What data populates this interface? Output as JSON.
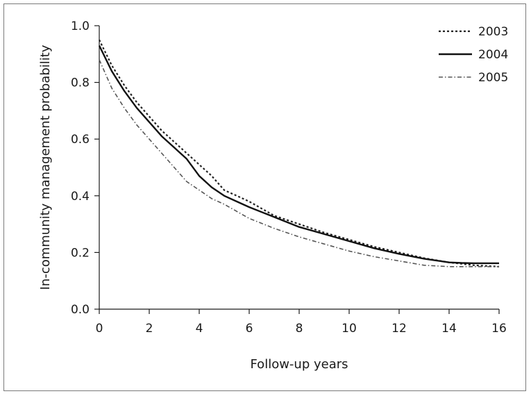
{
  "chart_data": {
    "type": "line",
    "title": "",
    "xlabel": "Follow-up years",
    "ylabel": "In-community management probability",
    "xlim": [
      0,
      16
    ],
    "ylim": [
      0,
      1
    ],
    "x_ticks": [
      "0",
      "2",
      "4",
      "6",
      "8",
      "10",
      "12",
      "14",
      "16"
    ],
    "y_ticks": [
      "0.0",
      "0.2",
      "0.4",
      "0.6",
      "0.8",
      "1.0"
    ],
    "grid": false,
    "legend_position": "top-right",
    "series": [
      {
        "name": "2003",
        "style": "dotted",
        "color": "#222222",
        "x": [
          0,
          0.5,
          1,
          1.5,
          2,
          2.5,
          3,
          3.5,
          4,
          4.5,
          5,
          5.5,
          6,
          7,
          8,
          9,
          10,
          11,
          12,
          13,
          14,
          14.5,
          15,
          16
        ],
        "y": [
          0.95,
          0.86,
          0.79,
          0.73,
          0.68,
          0.63,
          0.59,
          0.55,
          0.51,
          0.47,
          0.42,
          0.4,
          0.38,
          0.33,
          0.3,
          0.27,
          0.245,
          0.22,
          0.2,
          0.18,
          0.165,
          0.16,
          0.155,
          0.15
        ]
      },
      {
        "name": "2004",
        "style": "solid",
        "color": "#111111",
        "x": [
          0,
          0.5,
          1,
          1.5,
          2,
          2.5,
          3,
          3.5,
          4,
          4.5,
          5,
          5.5,
          6,
          7,
          8,
          9,
          10,
          11,
          12,
          13,
          14,
          14.5,
          15,
          16
        ],
        "y": [
          0.93,
          0.84,
          0.77,
          0.71,
          0.66,
          0.61,
          0.57,
          0.53,
          0.47,
          0.43,
          0.4,
          0.38,
          0.36,
          0.325,
          0.29,
          0.265,
          0.24,
          0.215,
          0.195,
          0.178,
          0.165,
          0.163,
          0.162,
          0.162
        ]
      },
      {
        "name": "2005",
        "style": "dash-dot",
        "color": "#555555",
        "x": [
          0,
          0.5,
          1,
          1.5,
          2,
          2.5,
          3,
          3.5,
          4,
          4.5,
          5,
          5.5,
          6,
          7,
          8,
          9,
          10,
          11,
          12,
          13,
          14,
          15,
          16
        ],
        "y": [
          0.88,
          0.78,
          0.71,
          0.65,
          0.6,
          0.55,
          0.5,
          0.45,
          0.42,
          0.39,
          0.37,
          0.345,
          0.32,
          0.285,
          0.255,
          0.23,
          0.205,
          0.185,
          0.17,
          0.155,
          0.15,
          0.15,
          0.15
        ]
      }
    ]
  }
}
